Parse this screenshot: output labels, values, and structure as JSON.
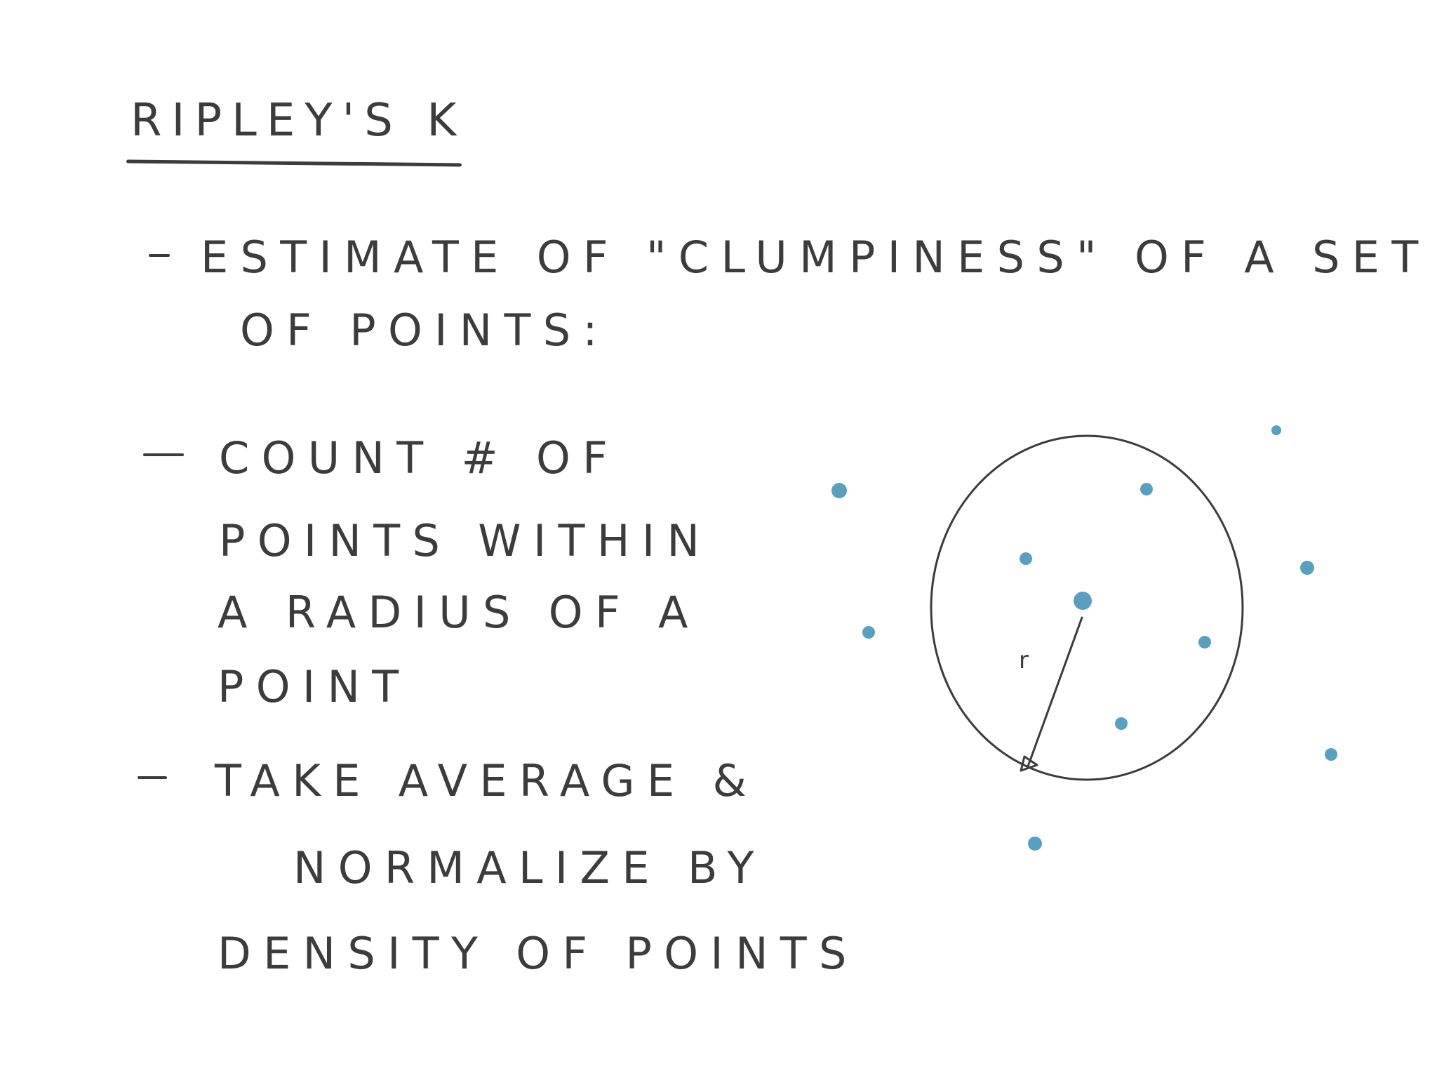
{
  "title": "RIPLEY'S K",
  "bullets": [
    {
      "lines": [
        "ESTIMATE OF \"CLUMPINESS\" OF A SET",
        "OF POINTS:"
      ]
    },
    {
      "lines": [
        "COUNT # OF",
        "POINTS WITHIN",
        "A RADIUS OF A",
        "POINT"
      ]
    },
    {
      "lines": [
        "TAKE AVERAGE &",
        "NORMALIZE BY",
        "DENSITY OF POINTS"
      ]
    }
  ],
  "diagram": {
    "radius_label": "r",
    "ink_color": "#3c3c3c",
    "point_color": "#5b9fc0"
  }
}
